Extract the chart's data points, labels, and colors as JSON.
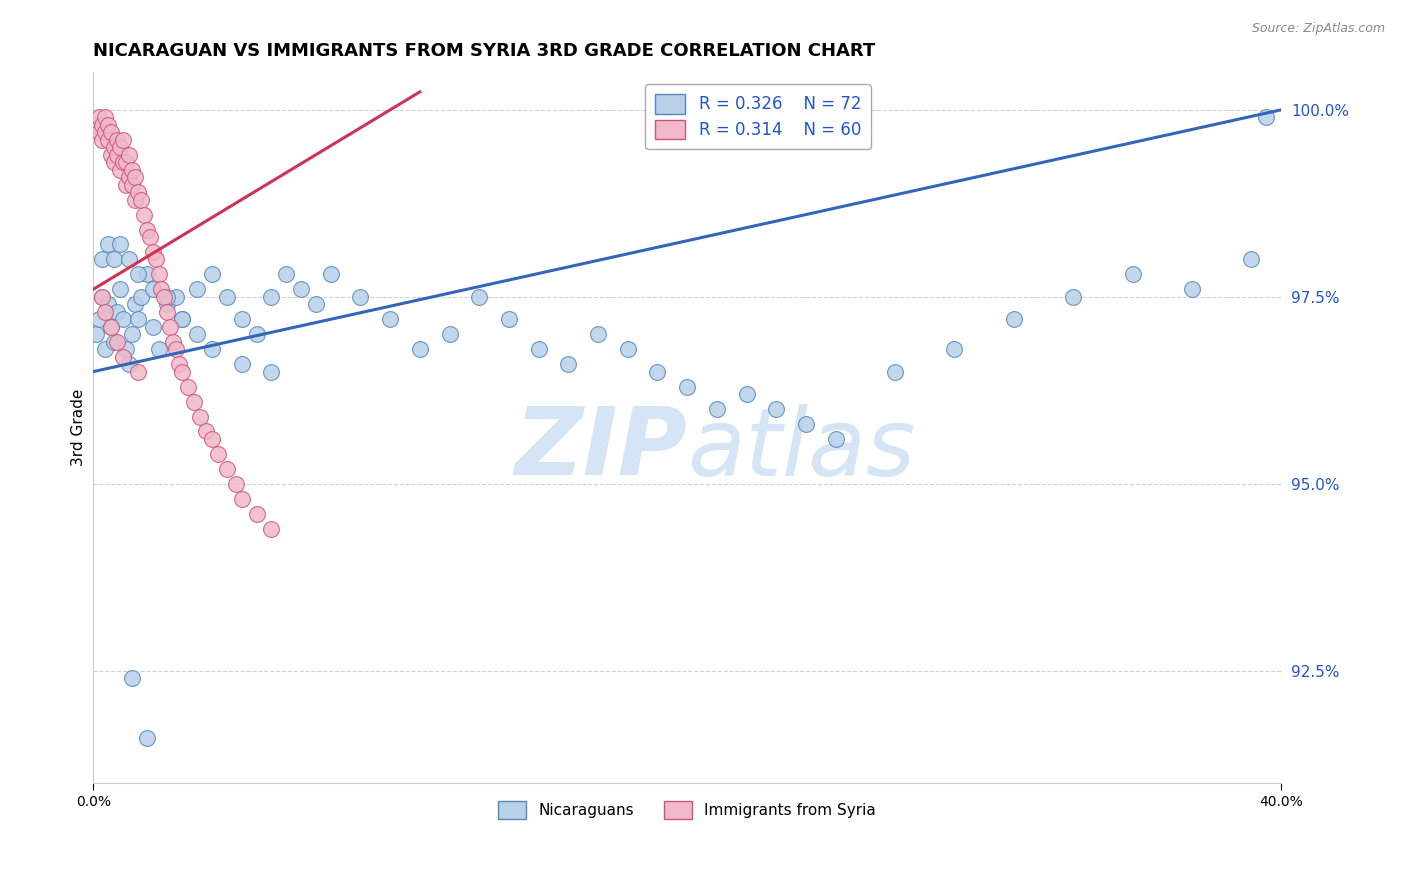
{
  "title": "NICARAGUAN VS IMMIGRANTS FROM SYRIA 3RD GRADE CORRELATION CHART",
  "source_text": "Source: ZipAtlas.com",
  "ylabel": "3rd Grade",
  "xlim": [
    0.0,
    0.4
  ],
  "ylim": [
    0.91,
    1.005
  ],
  "xtick_labels": [
    "0.0%",
    "40.0%"
  ],
  "xtick_positions": [
    0.0,
    0.4
  ],
  "ytick_labels": [
    "92.5%",
    "95.0%",
    "97.5%",
    "100.0%"
  ],
  "ytick_positions": [
    0.925,
    0.95,
    0.975,
    1.0
  ],
  "blue": {
    "name": "Nicaraguans",
    "color": "#b8d0e8",
    "edge_color": "#5588bb",
    "R": 0.326,
    "N": 72,
    "trend_color": "#3366bb",
    "x": [
      0.001,
      0.002,
      0.003,
      0.004,
      0.005,
      0.006,
      0.007,
      0.008,
      0.009,
      0.01,
      0.011,
      0.012,
      0.013,
      0.014,
      0.015,
      0.016,
      0.018,
      0.02,
      0.022,
      0.025,
      0.028,
      0.03,
      0.035,
      0.04,
      0.045,
      0.05,
      0.055,
      0.06,
      0.065,
      0.07,
      0.075,
      0.08,
      0.09,
      0.1,
      0.11,
      0.12,
      0.13,
      0.14,
      0.15,
      0.16,
      0.17,
      0.18,
      0.19,
      0.2,
      0.21,
      0.22,
      0.23,
      0.24,
      0.25,
      0.27,
      0.29,
      0.31,
      0.33,
      0.35,
      0.37,
      0.39,
      0.395,
      0.003,
      0.005,
      0.007,
      0.009,
      0.012,
      0.015,
      0.02,
      0.025,
      0.03,
      0.035,
      0.04,
      0.05,
      0.06,
      0.013,
      0.018
    ],
    "y": [
      0.97,
      0.972,
      0.975,
      0.968,
      0.974,
      0.971,
      0.969,
      0.973,
      0.976,
      0.972,
      0.968,
      0.966,
      0.97,
      0.974,
      0.972,
      0.975,
      0.978,
      0.971,
      0.968,
      0.974,
      0.975,
      0.972,
      0.976,
      0.978,
      0.975,
      0.972,
      0.97,
      0.975,
      0.978,
      0.976,
      0.974,
      0.978,
      0.975,
      0.972,
      0.968,
      0.97,
      0.975,
      0.972,
      0.968,
      0.966,
      0.97,
      0.968,
      0.965,
      0.963,
      0.96,
      0.962,
      0.96,
      0.958,
      0.956,
      0.965,
      0.968,
      0.972,
      0.975,
      0.978,
      0.976,
      0.98,
      0.999,
      0.98,
      0.982,
      0.98,
      0.982,
      0.98,
      0.978,
      0.976,
      0.975,
      0.972,
      0.97,
      0.968,
      0.966,
      0.965,
      0.924,
      0.916
    ]
  },
  "pink": {
    "name": "Immigrants from Syria",
    "color": "#f0b8c8",
    "edge_color": "#cc5577",
    "R": 0.314,
    "N": 60,
    "trend_color": "#cc3355",
    "x": [
      0.001,
      0.002,
      0.002,
      0.003,
      0.003,
      0.004,
      0.004,
      0.005,
      0.005,
      0.006,
      0.006,
      0.007,
      0.007,
      0.008,
      0.008,
      0.009,
      0.009,
      0.01,
      0.01,
      0.011,
      0.011,
      0.012,
      0.012,
      0.013,
      0.013,
      0.014,
      0.014,
      0.015,
      0.016,
      0.017,
      0.018,
      0.019,
      0.02,
      0.021,
      0.022,
      0.023,
      0.024,
      0.025,
      0.026,
      0.027,
      0.028,
      0.029,
      0.03,
      0.032,
      0.034,
      0.036,
      0.038,
      0.04,
      0.042,
      0.045,
      0.048,
      0.05,
      0.055,
      0.06,
      0.003,
      0.004,
      0.006,
      0.008,
      0.01,
      0.015
    ],
    "y": [
      0.998,
      0.999,
      0.997,
      0.998,
      0.996,
      0.997,
      0.999,
      0.996,
      0.998,
      0.994,
      0.997,
      0.993,
      0.995,
      0.996,
      0.994,
      0.992,
      0.995,
      0.993,
      0.996,
      0.99,
      0.993,
      0.991,
      0.994,
      0.99,
      0.992,
      0.988,
      0.991,
      0.989,
      0.988,
      0.986,
      0.984,
      0.983,
      0.981,
      0.98,
      0.978,
      0.976,
      0.975,
      0.973,
      0.971,
      0.969,
      0.968,
      0.966,
      0.965,
      0.963,
      0.961,
      0.959,
      0.957,
      0.956,
      0.954,
      0.952,
      0.95,
      0.948,
      0.946,
      0.944,
      0.975,
      0.973,
      0.971,
      0.969,
      0.967,
      0.965
    ]
  },
  "watermark_top": "ZIP",
  "watermark_bottom": "atlas",
  "watermark_color": "#d5e5f5",
  "legend_text_color": "#2255cc",
  "background_color": "#ffffff",
  "grid_color": "#cccccc"
}
